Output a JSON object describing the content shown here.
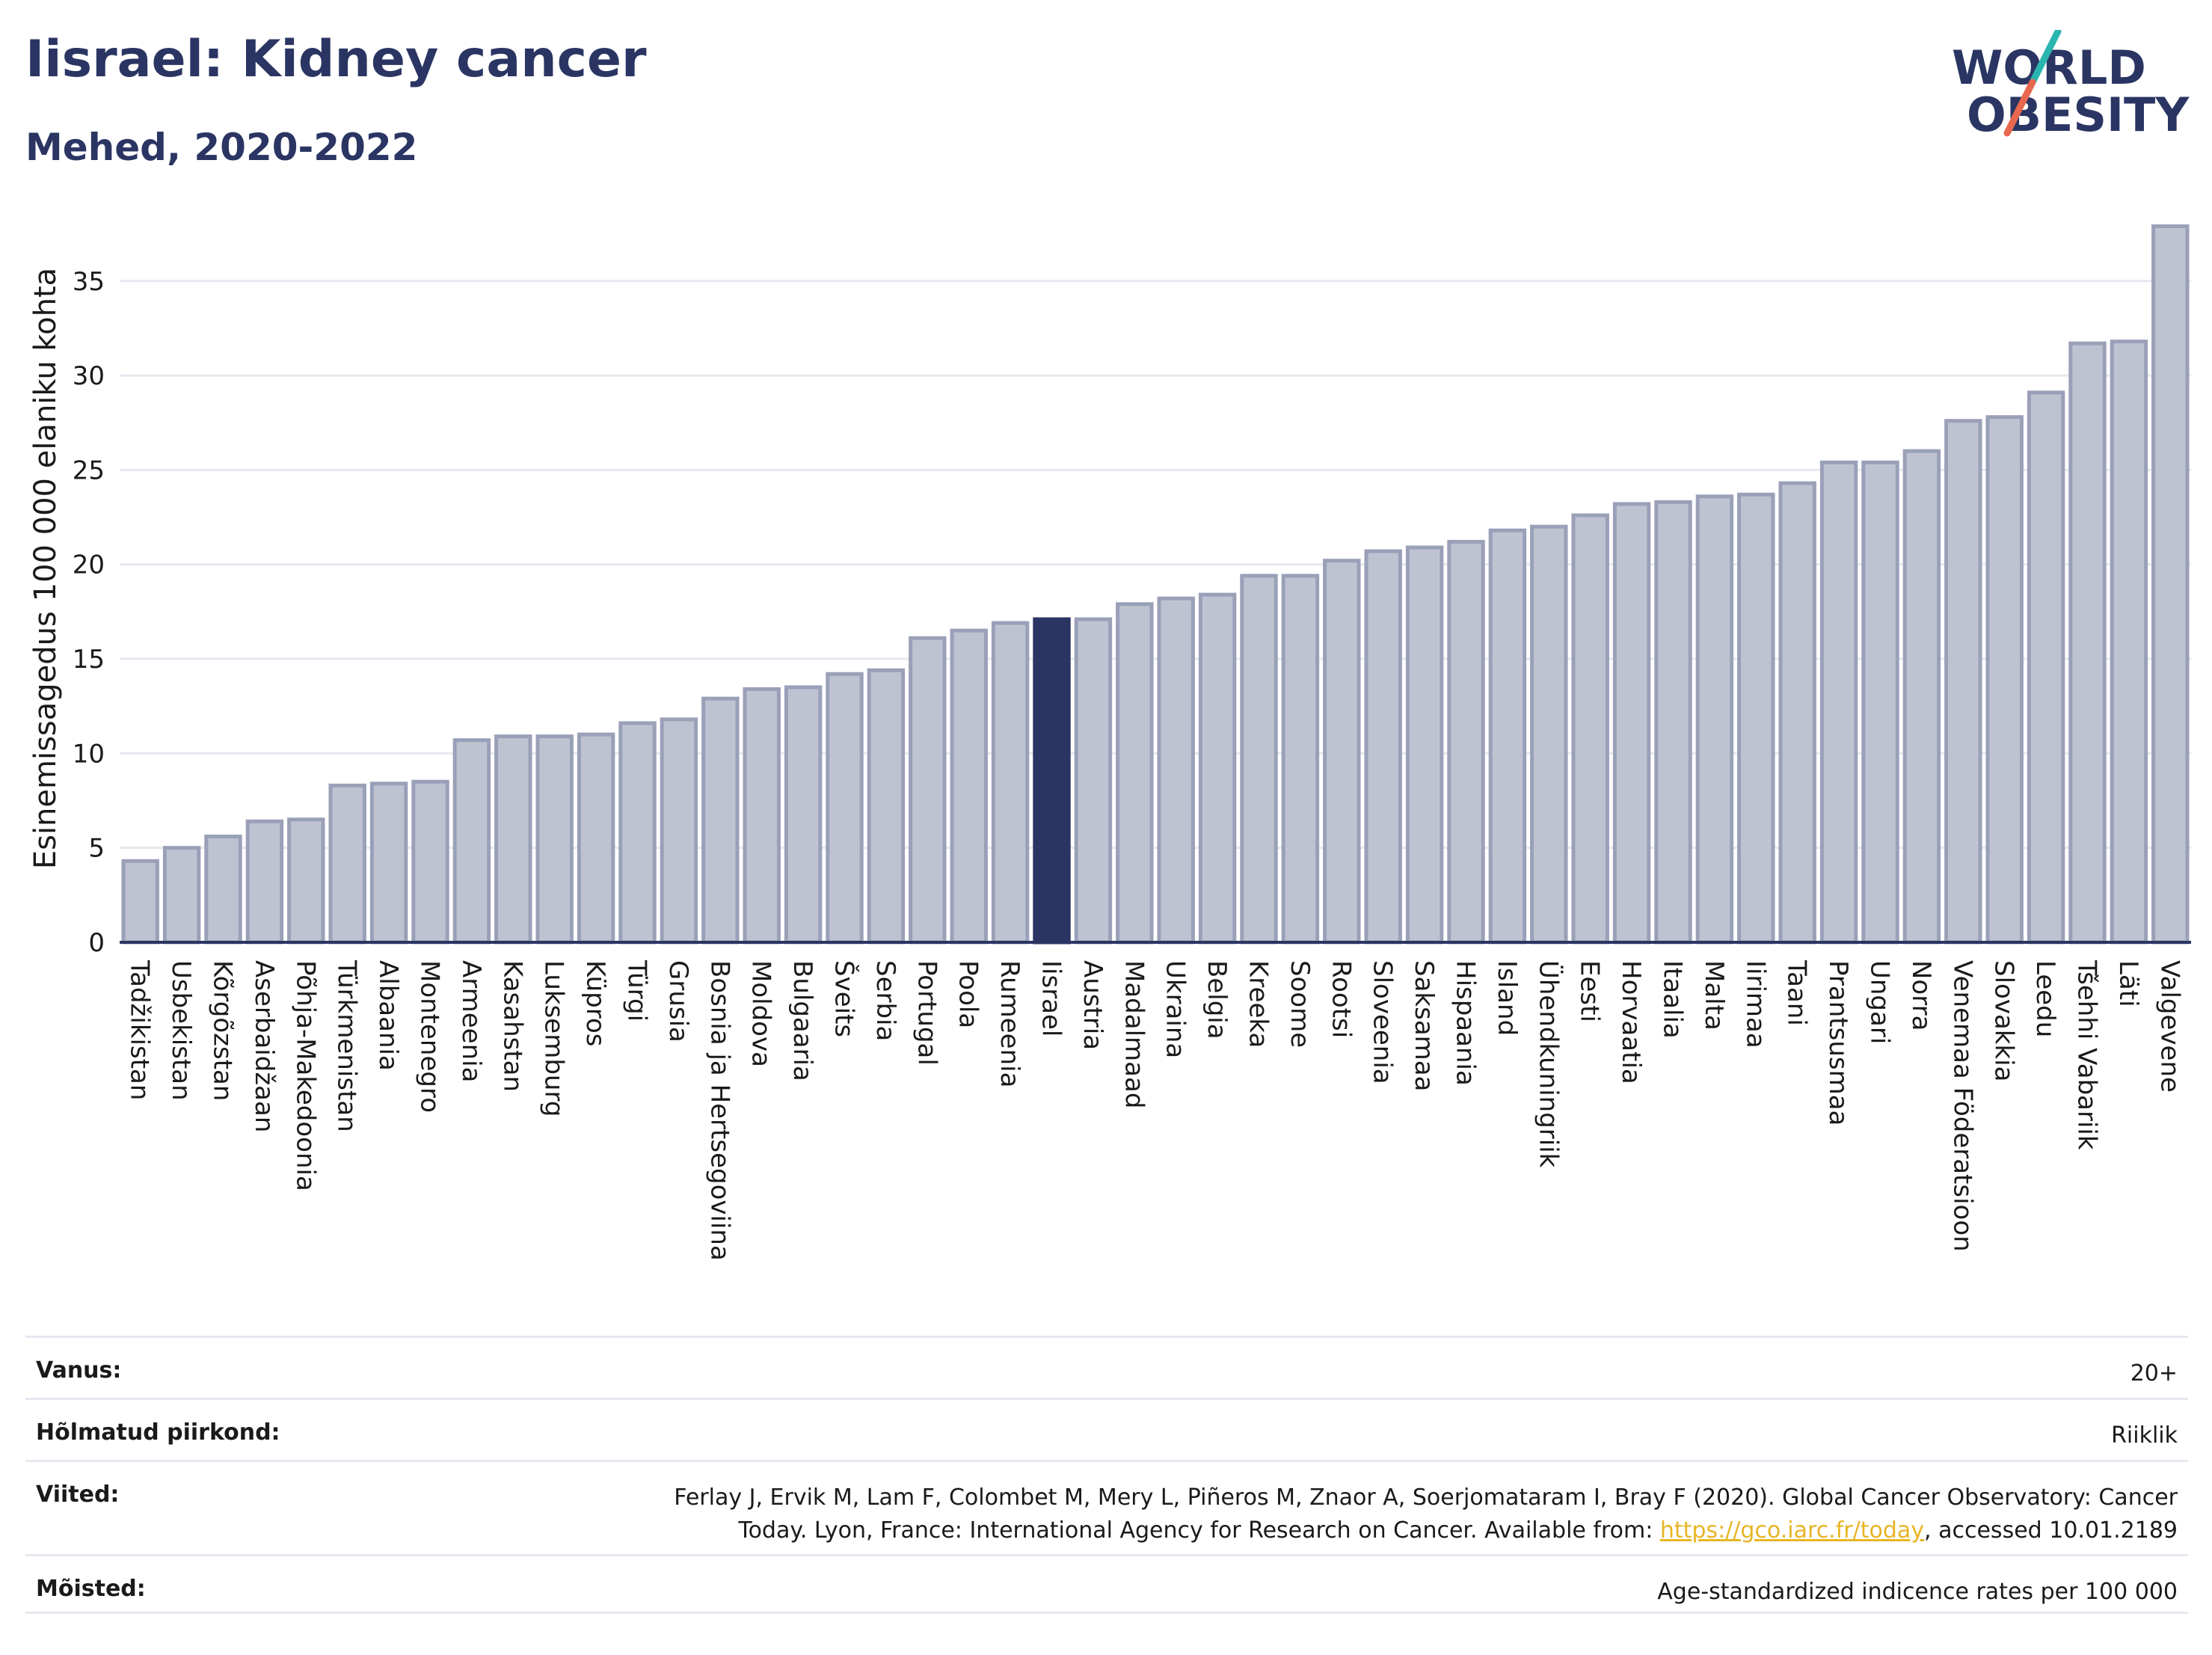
{
  "title": "Iisrael: Kidney cancer",
  "subtitle": "Mehed, 2020-2022",
  "logo": {
    "line1": "WORLD",
    "line2": "OBESITY",
    "colors": {
      "text": "#2b3563",
      "slash_top": "#2bb5b0",
      "slash_bottom": "#e8674f"
    }
  },
  "colors": {
    "bar": "#bfc3d1",
    "bar_stroke": "#9aa0b8",
    "highlight": "#2b3563",
    "grid": "#e6e8ef",
    "axis": "#2b3563"
  },
  "chart_data": {
    "type": "bar",
    "ylabel": "Esinemissagedus 100 000 elaniku kohta",
    "xlabel": "",
    "ylim": [
      0,
      38
    ],
    "yticks": [
      0,
      5,
      10,
      15,
      20,
      25,
      30,
      35
    ],
    "grid": true,
    "highlight": "Iisrael",
    "categories": [
      "Tadžikistan",
      "Usbekistan",
      "Kõrgõzstan",
      "Aserbaidžaan",
      "Põhja-Makedoonia",
      "Türkmenistan",
      "Albaania",
      "Montenegro",
      "Armeenia",
      "Kasahstan",
      "Luksemburg",
      "Küpros",
      "Türgi",
      "Grusia",
      "Bosnia ja Hertsegoviina",
      "Moldova",
      "Bulgaaria",
      "Šveits",
      "Serbia",
      "Portugal",
      "Poola",
      "Rumeenia",
      "Iisrael",
      "Austria",
      "Madalmaad",
      "Ukraina",
      "Belgia",
      "Kreeka",
      "Soome",
      "Rootsi",
      "Sloveenia",
      "Saksamaa",
      "Hispaania",
      "Island",
      "Ühendkuningriik",
      "Eesti",
      "Horvaatia",
      "Itaalia",
      "Malta",
      "Iirimaa",
      "Taani",
      "Prantsusmaa",
      "Ungari",
      "Norra",
      "Venemaa Föderatsioon",
      "Slovakkia",
      "Leedu",
      "Tšehhi Vabariik",
      "Läti",
      "Valgevene"
    ],
    "values": [
      4.3,
      5.0,
      5.6,
      6.4,
      6.5,
      8.3,
      8.4,
      8.5,
      10.7,
      10.9,
      10.9,
      11.0,
      11.6,
      11.8,
      12.9,
      13.4,
      13.5,
      14.2,
      14.4,
      16.1,
      16.5,
      16.9,
      17.1,
      17.1,
      17.9,
      18.2,
      18.4,
      19.4,
      19.4,
      20.2,
      20.7,
      20.9,
      21.2,
      21.8,
      22.0,
      22.6,
      23.2,
      23.3,
      23.6,
      23.7,
      24.3,
      25.4,
      25.4,
      26.0,
      27.6,
      27.8,
      29.1,
      31.7,
      31.8,
      37.9
    ]
  },
  "meta": [
    {
      "key": "Vanus:",
      "value": "20+"
    },
    {
      "key": "Hõlmatud piirkond:",
      "value": "Riiklik"
    },
    {
      "key": "Viited:",
      "value_line1": "Ferlay J, Ervik M, Lam F, Colombet M, Mery L, Piñeros M, Znaor A, Soerjomataram I, Bray F (2020). Global Cancer Observatory: Cancer",
      "value_pre": "Today. Lyon, France: International Agency for Research on Cancer. Available from: ",
      "link": "https://gco.iarc.fr/today",
      "value_post": ", accessed 10.01.2189"
    },
    {
      "key": "Mõisted:",
      "value": "Age-standardized indicence rates per 100 000"
    }
  ]
}
